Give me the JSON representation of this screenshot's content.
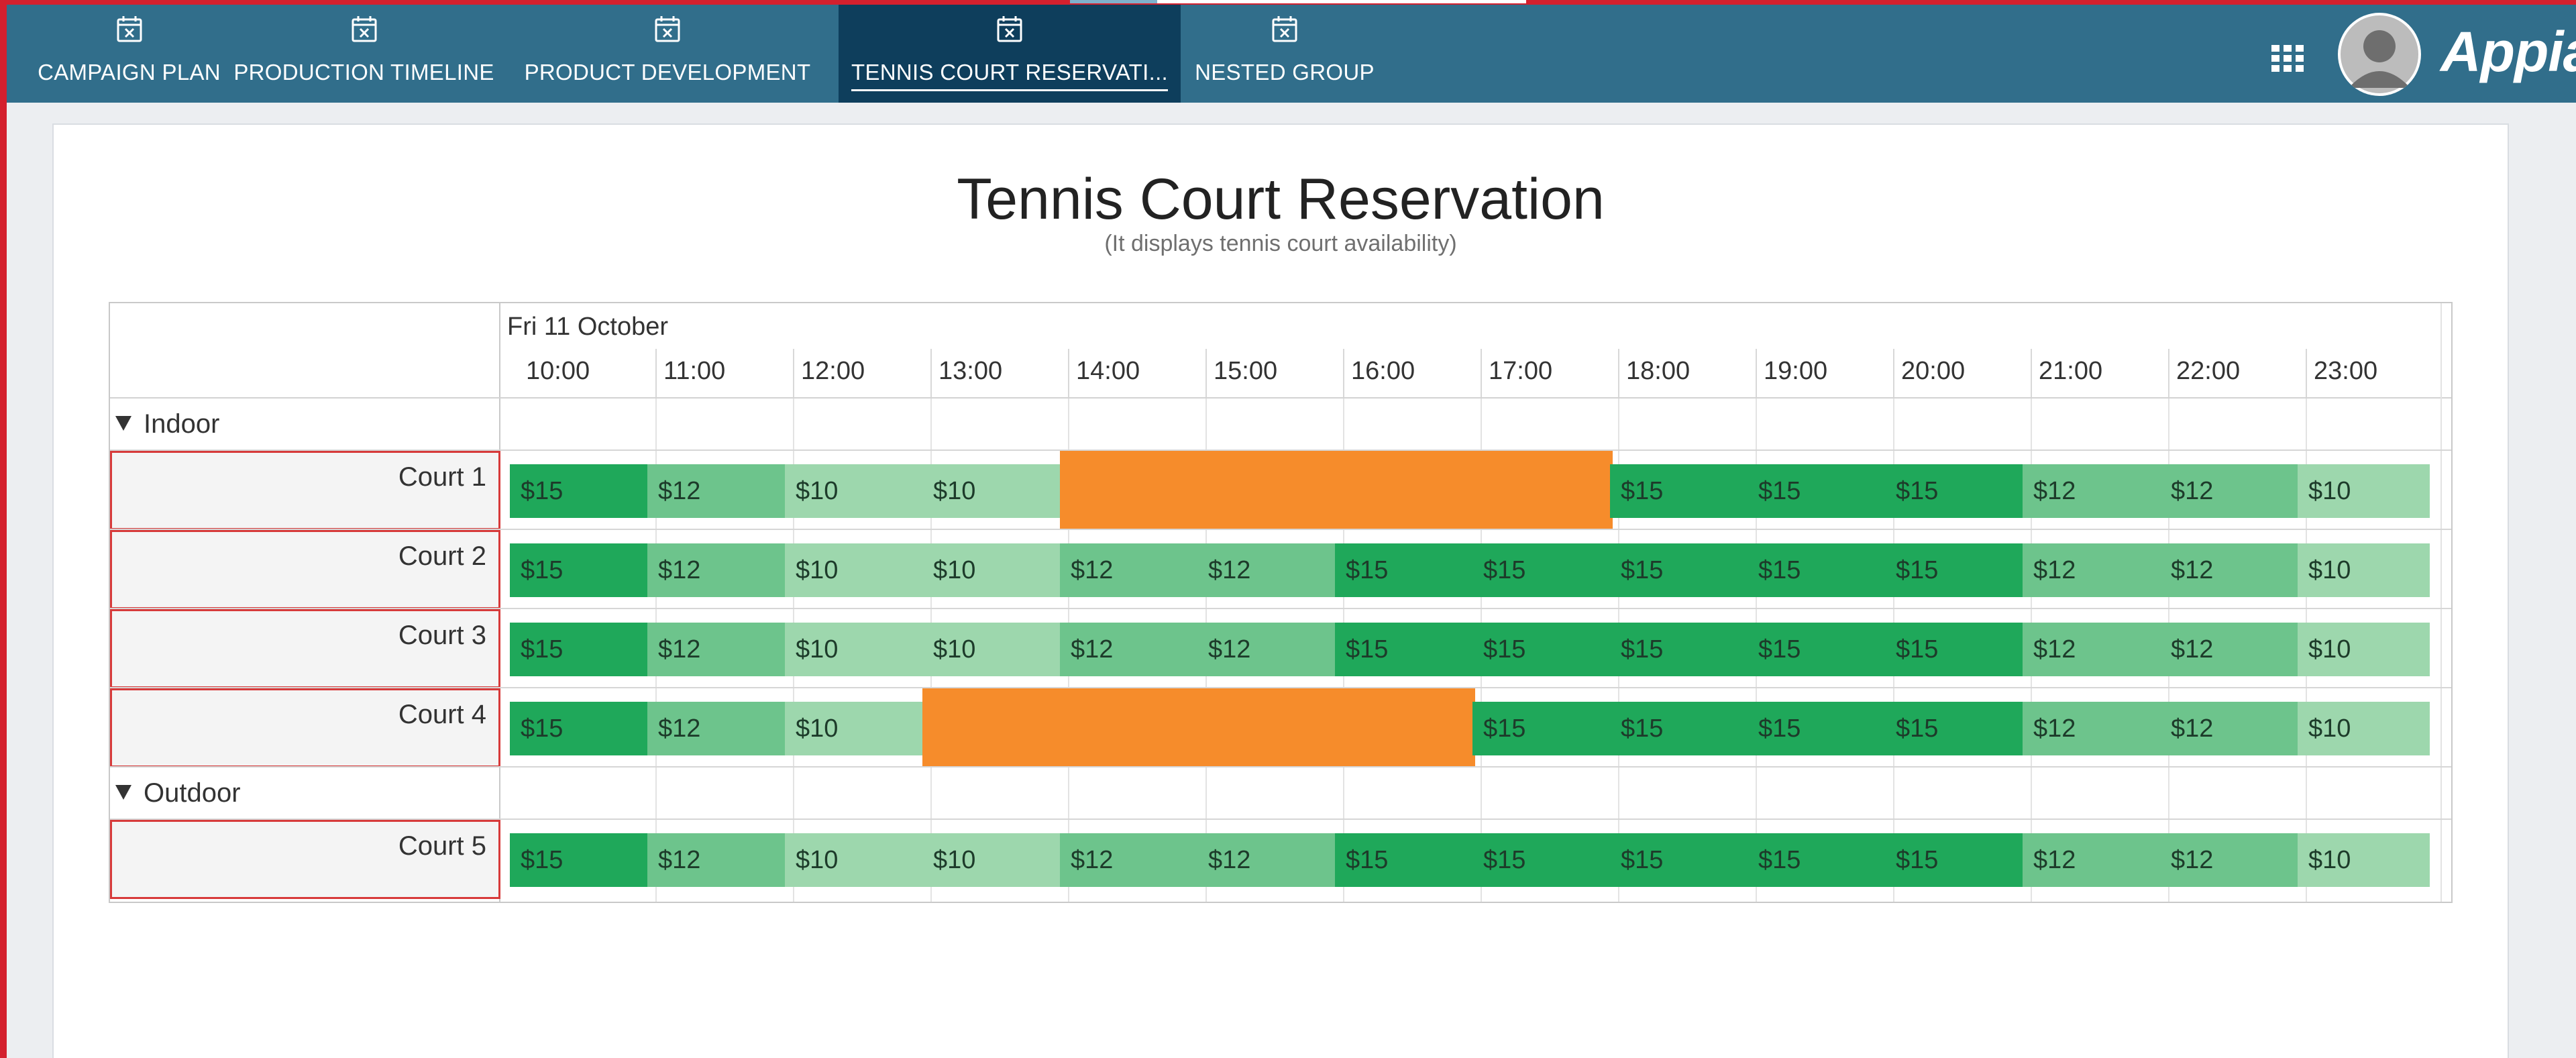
{
  "colors": {
    "header_bg": "#316e8b",
    "active_tab_bg": "#0e3e5c",
    "price_15": "#1fa85a",
    "price_12": "#6dc48c",
    "price_10": "#9dd7ad",
    "booked": "#f68c2b",
    "resource_border": "#d73a3a"
  },
  "header": {
    "tabs": [
      {
        "label": "CAMPAIGN PLAN",
        "icon": "calendar-x-icon",
        "active": false
      },
      {
        "label": "PRODUCTION TIMELINE",
        "icon": "calendar-x-icon",
        "active": false
      },
      {
        "label": "PRODUCT DEVELOPMENT",
        "icon": "calendar-x-icon",
        "active": false
      },
      {
        "label": "TENNIS COURT RESERVATI...",
        "icon": "calendar-x-icon",
        "active": true
      },
      {
        "label": "NESTED GROUP",
        "icon": "calendar-x-icon",
        "active": false
      }
    ],
    "apps_icon": "apps-grid-icon",
    "avatar_icon": "user-avatar-icon",
    "brand": "Appian"
  },
  "page": {
    "title": "Tennis Court Reservation",
    "subtitle": "(It displays tennis court availability)"
  },
  "schedule": {
    "date_label": "Fri 11 October",
    "hours": [
      "10:00",
      "11:00",
      "12:00",
      "13:00",
      "14:00",
      "15:00",
      "16:00",
      "17:00",
      "18:00",
      "19:00",
      "20:00",
      "21:00",
      "22:00",
      "23:00"
    ],
    "groups": [
      {
        "name": "Indoor",
        "courts": [
          {
            "name": "Court 1",
            "slots": [
              "$15",
              "$12",
              "$10",
              "$10",
              "booked",
              "booked",
              "booked",
              "booked",
              "$15",
              "$15",
              "$15",
              "$12",
              "$12",
              "$10"
            ]
          },
          {
            "name": "Court 2",
            "slots": [
              "$15",
              "$12",
              "$10",
              "$10",
              "$12",
              "$12",
              "$15",
              "$15",
              "$15",
              "$15",
              "$15",
              "$12",
              "$12",
              "$10"
            ]
          },
          {
            "name": "Court 3",
            "slots": [
              "$15",
              "$12",
              "$10",
              "$10",
              "$12",
              "$12",
              "$15",
              "$15",
              "$15",
              "$15",
              "$15",
              "$12",
              "$12",
              "$10"
            ]
          },
          {
            "name": "Court 4",
            "slots": [
              "$15",
              "$12",
              "$10",
              "booked",
              "booked",
              "booked",
              "booked",
              "$15",
              "$15",
              "$15",
              "$15",
              "$12",
              "$12",
              "$10"
            ]
          }
        ]
      },
      {
        "name": "Outdoor",
        "courts": [
          {
            "name": "Court 5",
            "slots": [
              "$15",
              "$12",
              "$10",
              "$10",
              "$12",
              "$12",
              "$15",
              "$15",
              "$15",
              "$15",
              "$15",
              "$12",
              "$12",
              "$10"
            ]
          }
        ]
      }
    ]
  }
}
